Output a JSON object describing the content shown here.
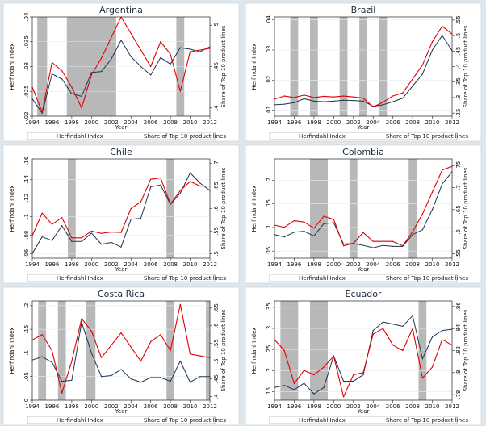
{
  "figure": {
    "background": "#dfe7ec",
    "plot_background": "#ffffff",
    "frame_background": "#ffffff"
  },
  "colors": {
    "hhi": "#1a3552",
    "top10": "#e00000",
    "shade": "#b8b8b8"
  },
  "legend": {
    "hhi_label": "Herfindahl Index",
    "top10_label": "Share of Top 10 product lines",
    "placement": "bottom"
  },
  "chart_data": [
    {
      "type": "line",
      "title": "Argentina",
      "xlabel": "Year",
      "ylabel": "Herfindahl Index",
      "y2label": "Share of Top 10 product lines",
      "xlim": [
        1994,
        2012
      ],
      "xticks": [
        1994,
        1996,
        1998,
        2000,
        2002,
        2004,
        2006,
        2008,
        2010,
        2012
      ],
      "ylim": [
        0.02,
        0.04
      ],
      "yticks": [
        0.02,
        0.025,
        0.03,
        0.035,
        0.04
      ],
      "yticklabels": [
        ".02",
        ".025",
        ".03",
        ".035",
        ".04"
      ],
      "y2lim": [
        0.39,
        0.51
      ],
      "y2ticks": [
        0.4,
        0.45,
        0.5
      ],
      "y2ticklabels": [
        ".4",
        ".45",
        ".5"
      ],
      "shaded": [
        [
          1994.5,
          1995.5
        ],
        [
          1997.5,
          2002.5
        ],
        [
          2008.6,
          2009.4
        ]
      ],
      "x": [
        1994,
        1995,
        1996,
        1997,
        1998,
        1999,
        2000,
        2001,
        2002,
        2003,
        2004,
        2005,
        2006,
        2007,
        2008,
        2009,
        2010,
        2011,
        2012
      ],
      "series": [
        {
          "name": "Herfindahl Index",
          "axis": "left",
          "values": [
            0.0235,
            0.0206,
            0.0285,
            0.0275,
            0.0245,
            0.024,
            0.0288,
            0.029,
            0.0315,
            0.0353,
            0.032,
            0.03,
            0.0283,
            0.0318,
            0.0305,
            0.0338,
            0.0335,
            0.033,
            0.034
          ]
        },
        {
          "name": "Share of Top 10 product lines",
          "axis": "right",
          "values": [
            0.425,
            0.395,
            0.455,
            0.445,
            0.425,
            0.4,
            0.44,
            0.46,
            0.485,
            0.51,
            0.49,
            0.47,
            0.45,
            0.48,
            0.465,
            0.42,
            0.468,
            0.47,
            0.472
          ]
        }
      ]
    },
    {
      "type": "line",
      "title": "Brazil",
      "xlabel": "Year",
      "ylabel": "Herfindahl Index",
      "y2label": "Share of Top 10 product lines",
      "xlim": [
        1994,
        2012
      ],
      "xticks": [
        1994,
        1996,
        1998,
        2000,
        2002,
        2004,
        2006,
        2008,
        2010,
        2012
      ],
      "ylim": [
        0.008,
        0.041
      ],
      "yticks": [
        0.01,
        0.02,
        0.03,
        0.04
      ],
      "yticklabels": [
        ".01",
        ".02",
        ".03",
        ".04"
      ],
      "y2lim": [
        0.24,
        0.56
      ],
      "y2ticks": [
        0.25,
        0.3,
        0.35,
        0.4,
        0.45,
        0.5,
        0.55
      ],
      "y2ticklabels": [
        ".25",
        ".3",
        ".35",
        ".4",
        ".45",
        ".5",
        ".55"
      ],
      "shaded": [
        [
          1995.6,
          1996.4
        ],
        [
          1997.6,
          1998.4
        ],
        [
          2000.6,
          2001.4
        ],
        [
          2002.6,
          2003.4
        ],
        [
          2004.6,
          2005.4
        ]
      ],
      "x": [
        1994,
        1995,
        1996,
        1997,
        1998,
        1999,
        2000,
        2001,
        2002,
        2003,
        2004,
        2005,
        2006,
        2007,
        2008,
        2009,
        2010,
        2011,
        2012
      ],
      "series": [
        {
          "name": "Herfindahl Index",
          "axis": "left",
          "values": [
            0.0118,
            0.012,
            0.0125,
            0.0138,
            0.013,
            0.0128,
            0.013,
            0.0133,
            0.0132,
            0.013,
            0.0113,
            0.0118,
            0.0128,
            0.014,
            0.018,
            0.022,
            0.03,
            0.0348,
            0.0298
          ]
        },
        {
          "name": "Share of Top 10 product lines",
          "axis": "right",
          "values": [
            0.295,
            0.305,
            0.3,
            0.308,
            0.3,
            0.304,
            0.302,
            0.305,
            0.302,
            0.298,
            0.27,
            0.285,
            0.305,
            0.315,
            0.36,
            0.405,
            0.48,
            0.53,
            0.505
          ]
        }
      ]
    },
    {
      "type": "line",
      "title": "Chile",
      "xlabel": "Year",
      "ylabel": "Herfindahl Index",
      "y2label": "Share of Top 10 product lines",
      "xlim": [
        1994,
        2012
      ],
      "xticks": [
        1994,
        1996,
        1998,
        2000,
        2002,
        2004,
        2006,
        2008,
        2010,
        2012
      ],
      "ylim": [
        0.055,
        0.162
      ],
      "yticks": [
        0.06,
        0.08,
        0.1,
        0.12,
        0.14,
        0.16
      ],
      "yticklabels": [
        ".06",
        ".08",
        ".1",
        ".12",
        ".14",
        ".16"
      ],
      "y2lim": [
        0.49,
        0.71
      ],
      "y2ticks": [
        0.5,
        0.55,
        0.6,
        0.65,
        0.7
      ],
      "y2ticklabels": [
        ".5",
        ".55",
        ".6",
        ".65",
        ".7"
      ],
      "shaded": [
        [
          1997.6,
          1998.4
        ],
        [
          2007.6,
          2008.4
        ]
      ],
      "x": [
        1994,
        1995,
        1996,
        1997,
        1998,
        1999,
        2000,
        2001,
        2002,
        2003,
        2004,
        2005,
        2006,
        2007,
        2008,
        2009,
        2010,
        2011,
        2012
      ],
      "series": [
        {
          "name": "Herfindahl Index",
          "axis": "left",
          "values": [
            0.06,
            0.078,
            0.074,
            0.09,
            0.073,
            0.073,
            0.082,
            0.07,
            0.072,
            0.067,
            0.097,
            0.098,
            0.132,
            0.134,
            0.113,
            0.125,
            0.147,
            0.136,
            0.128
          ]
        },
        {
          "name": "Share of Top 10 product lines",
          "axis": "right",
          "values": [
            0.54,
            0.59,
            0.565,
            0.58,
            0.535,
            0.535,
            0.55,
            0.545,
            0.548,
            0.547,
            0.6,
            0.615,
            0.665,
            0.668,
            0.61,
            0.64,
            0.66,
            0.65,
            0.65
          ]
        }
      ]
    },
    {
      "type": "line",
      "title": "Colombia",
      "xlabel": "Year",
      "ylabel": "Herfindahl Index",
      "y2label": "Share of Top 10 product lines",
      "xlim": [
        1994,
        2012
      ],
      "xticks": [
        1994,
        1996,
        1998,
        2000,
        2002,
        2004,
        2006,
        2008,
        2010,
        2012
      ],
      "ylim": [
        0.035,
        0.245
      ],
      "yticks": [
        0.05,
        0.1,
        0.15,
        0.2
      ],
      "yticklabels": [
        ".05",
        ".1",
        ".15",
        ".2"
      ],
      "y2lim": [
        0.54,
        0.765
      ],
      "y2ticks": [
        0.55,
        0.6,
        0.65,
        0.7,
        0.75
      ],
      "y2ticklabels": [
        ".55",
        ".6",
        ".65",
        ".7",
        ".75"
      ],
      "shaded": [
        [
          1997.6,
          1999.4
        ],
        [
          2001.6,
          2002.4
        ],
        [
          2007.6,
          2008.4
        ]
      ],
      "x": [
        1994,
        1995,
        1996,
        1997,
        1998,
        1999,
        2000,
        2001,
        2002,
        2003,
        2004,
        2005,
        2006,
        2007,
        2008,
        2009,
        2010,
        2011,
        2012
      ],
      "series": [
        {
          "name": "Herfindahl Index",
          "axis": "left",
          "values": [
            0.085,
            0.08,
            0.09,
            0.092,
            0.082,
            0.108,
            0.11,
            0.065,
            0.066,
            0.062,
            0.057,
            0.062,
            0.06,
            0.06,
            0.085,
            0.095,
            0.138,
            0.192,
            0.218
          ]
        },
        {
          "name": "Share of Top 10 product lines",
          "axis": "right",
          "values": [
            0.615,
            0.61,
            0.625,
            0.622,
            0.608,
            0.635,
            0.628,
            0.568,
            0.574,
            0.598,
            0.578,
            0.578,
            0.578,
            0.568,
            0.6,
            0.64,
            0.69,
            0.74,
            0.748
          ]
        }
      ]
    },
    {
      "type": "line",
      "title": "Costa Rica",
      "xlabel": "Year",
      "ylabel": "Herfindahl Index",
      "y2label": "Share of Top 10 product lines",
      "xlim": [
        1994,
        2012
      ],
      "xticks": [
        1994,
        1996,
        1998,
        2000,
        2002,
        2004,
        2006,
        2008,
        2010,
        2012
      ],
      "ylim": [
        0.0,
        0.21
      ],
      "yticks": [
        0.0,
        0.05,
        0.1,
        0.15,
        0.2
      ],
      "yticklabels": [
        "0",
        ".05",
        ".1",
        ".15",
        ".2"
      ],
      "y2lim": [
        0.39,
        0.67
      ],
      "y2ticks": [
        0.4,
        0.45,
        0.5,
        0.55,
        0.6,
        0.65
      ],
      "y2ticklabels": [
        ".4",
        ".45",
        ".5",
        ".55",
        ".6",
        ".65"
      ],
      "shaded": [
        [
          1994.6,
          1995.4
        ],
        [
          1996.6,
          1997.4
        ],
        [
          1999.4,
          2000.4
        ],
        [
          2007.6,
          2008.4
        ],
        [
          2011.6,
          2012.4
        ]
      ],
      "x": [
        1994,
        1995,
        1996,
        1997,
        1998,
        1999,
        2000,
        2001,
        2002,
        2003,
        2004,
        2005,
        2006,
        2007,
        2008,
        2009,
        2010,
        2011,
        2012
      ],
      "series": [
        {
          "name": "Herfindahl Index",
          "axis": "left",
          "values": [
            0.085,
            0.092,
            0.08,
            0.04,
            0.042,
            0.165,
            0.1,
            0.05,
            0.052,
            0.065,
            0.045,
            0.038,
            0.048,
            0.048,
            0.04,
            0.083,
            0.038,
            0.05,
            0.05
          ]
        },
        {
          "name": "Share of Top 10 product lines",
          "axis": "right",
          "values": [
            0.56,
            0.575,
            0.53,
            0.41,
            0.5,
            0.62,
            0.585,
            0.51,
            0.545,
            0.58,
            0.54,
            0.5,
            0.555,
            0.575,
            0.53,
            0.66,
            0.52,
            0.515,
            0.51
          ]
        }
      ]
    },
    {
      "type": "line",
      "title": "Ecuador",
      "xlabel": "Year",
      "ylabel": "Herfindahl Index",
      "y2label": "Share of Top 10 product lines",
      "xlim": [
        1994,
        2012
      ],
      "xticks": [
        1994,
        1996,
        1998,
        2000,
        2002,
        2004,
        2006,
        2008,
        2010,
        2012
      ],
      "ylim": [
        0.13,
        0.365
      ],
      "yticks": [
        0.15,
        0.2,
        0.25,
        0.3,
        0.35
      ],
      "yticklabels": [
        ".15",
        ".2",
        ".25",
        ".3",
        ".35"
      ],
      "y2lim": [
        0.775,
        0.865
      ],
      "y2ticks": [
        0.78,
        0.8,
        0.82,
        0.84,
        0.86
      ],
      "y2ticklabels": [
        ".78",
        ".8",
        ".82",
        ".84",
        ".86"
      ],
      "shaded": [
        [
          1994.6,
          1996.4
        ],
        [
          1997.6,
          1999.4
        ],
        [
          2008.6,
          2009.4
        ]
      ],
      "x": [
        1994,
        1995,
        1996,
        1997,
        1998,
        1999,
        2000,
        2001,
        2002,
        2003,
        2004,
        2005,
        2006,
        2007,
        2008,
        2009,
        2010,
        2011,
        2012
      ],
      "series": [
        {
          "name": "Herfindahl Index",
          "axis": "left",
          "values": [
            0.16,
            0.165,
            0.155,
            0.17,
            0.145,
            0.16,
            0.235,
            0.175,
            0.175,
            0.19,
            0.295,
            0.315,
            0.31,
            0.305,
            0.33,
            0.228,
            0.28,
            0.295,
            0.298
          ]
        },
        {
          "name": "Share of Top 10 product lines",
          "axis": "right",
          "values": [
            0.83,
            0.82,
            0.79,
            0.802,
            0.798,
            0.805,
            0.815,
            0.778,
            0.798,
            0.8,
            0.835,
            0.84,
            0.825,
            0.82,
            0.84,
            0.795,
            0.805,
            0.83,
            0.825
          ]
        }
      ]
    }
  ]
}
